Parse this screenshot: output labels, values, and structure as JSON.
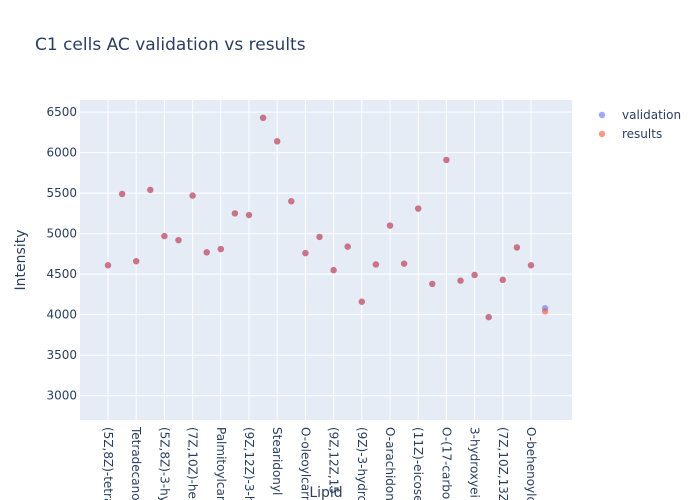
{
  "chart_data": {
    "type": "scatter",
    "title": "C1 cells AC validation vs results",
    "xlabel": "Lipid",
    "ylabel": "Intensity",
    "ylim": [
      2700,
      6650
    ],
    "yticks": [
      3000,
      3500,
      4000,
      4500,
      5000,
      5500,
      6000,
      6500
    ],
    "legend_position": "top-right",
    "colors": {
      "validation": "#636efa",
      "results": "#ef553b",
      "plot_bg": "#e5ecf6"
    },
    "categories": [
      "(5Z,8Z)-tetra",
      "",
      "Tetradecano",
      "",
      "(5Z,8Z)-3-hy",
      "",
      "(7Z,10Z)-he",
      "",
      "Palmitoylcar",
      "",
      "(9Z,12Z)-3-h",
      "",
      "Stearidonyl",
      "",
      "O-oleoylcarn",
      "",
      "(9Z,12Z,15",
      "",
      "(9Z)-3-hydro",
      "",
      "O-arachidon",
      "",
      "(11Z)-eicose",
      "",
      "O-(17-carbo",
      "",
      "3-hydroxyei",
      "",
      "(7Z,10Z,13Z",
      "",
      "O-behenoylc",
      ""
    ],
    "series": [
      {
        "name": "validation",
        "values": [
          4610,
          5490,
          4660,
          5540,
          4970,
          4920,
          5470,
          4770,
          4810,
          5250,
          5230,
          6430,
          6140,
          5400,
          4760,
          4960,
          4550,
          4840,
          4160,
          4620,
          5100,
          4630,
          5310,
          4380,
          5910,
          4420,
          4490,
          3970,
          4430,
          4830,
          4610,
          4080
        ]
      },
      {
        "name": "results",
        "values": [
          4610,
          5490,
          4660,
          5540,
          4970,
          4920,
          5470,
          4770,
          4810,
          5250,
          5230,
          6430,
          6140,
          5400,
          4760,
          4960,
          4550,
          4840,
          4160,
          4620,
          5100,
          4630,
          5310,
          4380,
          5910,
          4420,
          4490,
          3970,
          4430,
          4830,
          4610,
          4040
        ]
      }
    ]
  }
}
